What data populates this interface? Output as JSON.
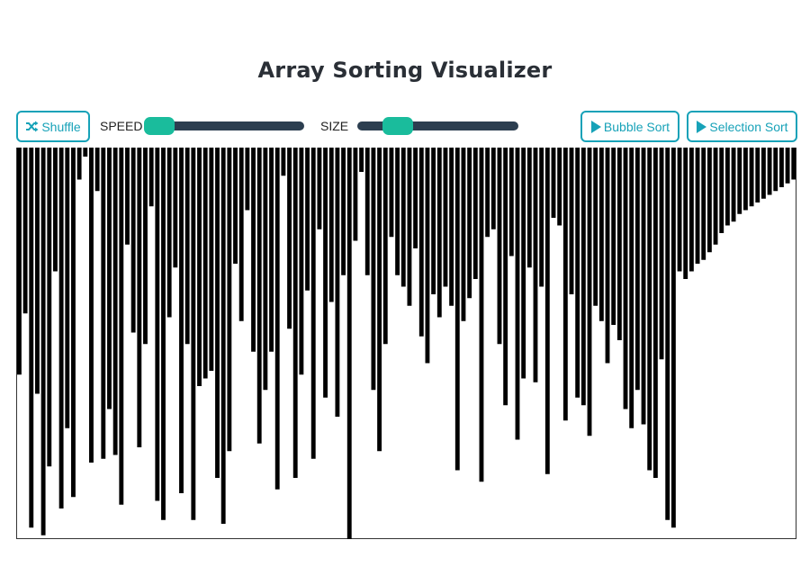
{
  "page": {
    "title": "Array Sorting Visualizer"
  },
  "toolbar": {
    "shuffle_label": "Shuffle",
    "speed_label": "SPEED",
    "size_label": "SIZE",
    "speed_value": 0.1,
    "size_value": 0.25,
    "bubble_label": "Bubble Sort",
    "selection_label": "Selection Sort"
  },
  "colors": {
    "accent": "#17a2b8",
    "slider_track": "#2c3e50",
    "slider_thumb": "#1abc9c",
    "bar": "#000000"
  },
  "icons": {
    "shuffle": "shuffle-icon",
    "play": "play-icon"
  },
  "array": {
    "max": 100,
    "values": [
      57,
      41,
      97,
      62,
      99,
      81,
      30,
      92,
      71,
      89,
      6,
      0,
      80,
      9,
      79,
      66,
      78,
      91,
      23,
      46,
      76,
      49,
      13,
      90,
      95,
      42,
      29,
      88,
      49,
      95,
      60,
      58,
      56,
      84,
      96,
      77,
      28,
      43,
      14,
      51,
      75,
      61,
      51,
      87,
      5,
      45,
      84,
      57,
      35,
      79,
      19,
      63,
      38,
      68,
      31,
      100,
      22,
      4,
      31,
      61,
      77,
      49,
      21,
      31,
      34,
      39,
      24,
      47,
      54,
      36,
      42,
      34,
      39,
      82,
      43,
      37,
      32,
      85,
      21,
      19,
      49,
      65,
      26,
      74,
      58,
      29,
      59,
      34,
      83,
      16,
      18,
      69,
      36,
      63,
      65,
      73,
      39,
      43,
      54,
      44,
      48,
      66,
      71,
      61,
      70,
      82,
      84,
      53,
      95,
      97,
      30,
      32,
      30,
      28,
      27,
      25,
      23,
      20,
      18,
      17,
      15,
      14,
      13,
      12,
      11,
      10,
      9,
      8,
      7,
      6
    ]
  }
}
